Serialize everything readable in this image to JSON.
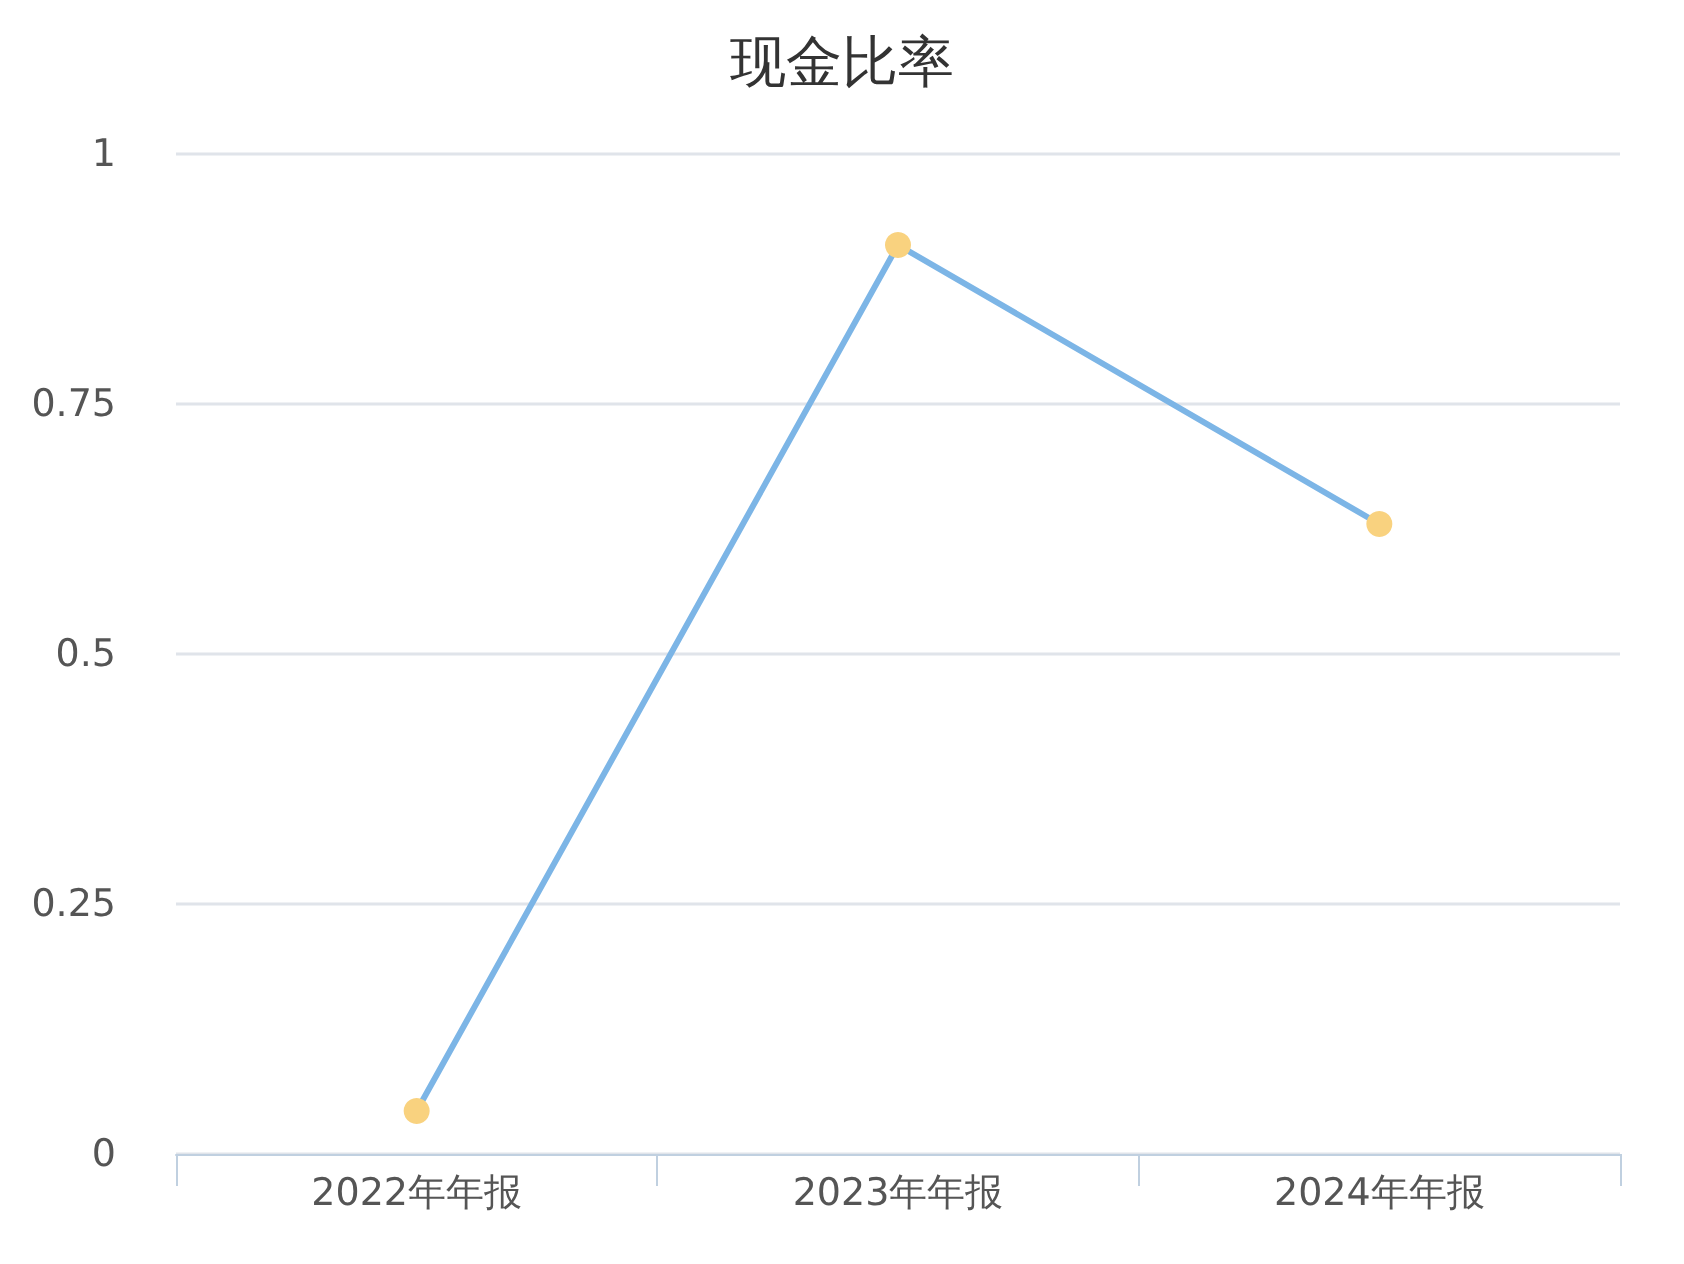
{
  "chart_data": {
    "type": "line",
    "title": "现金比率",
    "categories": [
      "2022年年报",
      "2023年年报",
      "2024年年报"
    ],
    "series": [
      {
        "color": "#7cb5e6",
        "colors": [
          "#f9d27f",
          "#f9d27f",
          "#f9d27f"
        ],
        "values": [
          0.043,
          0.909,
          0.63
        ]
      }
    ],
    "ylim": [
      0,
      1
    ],
    "yticks": [
      0,
      0.25,
      0.5,
      0.75,
      1
    ],
    "grid": "y",
    "marker": "circle",
    "line_style": "solid"
  }
}
